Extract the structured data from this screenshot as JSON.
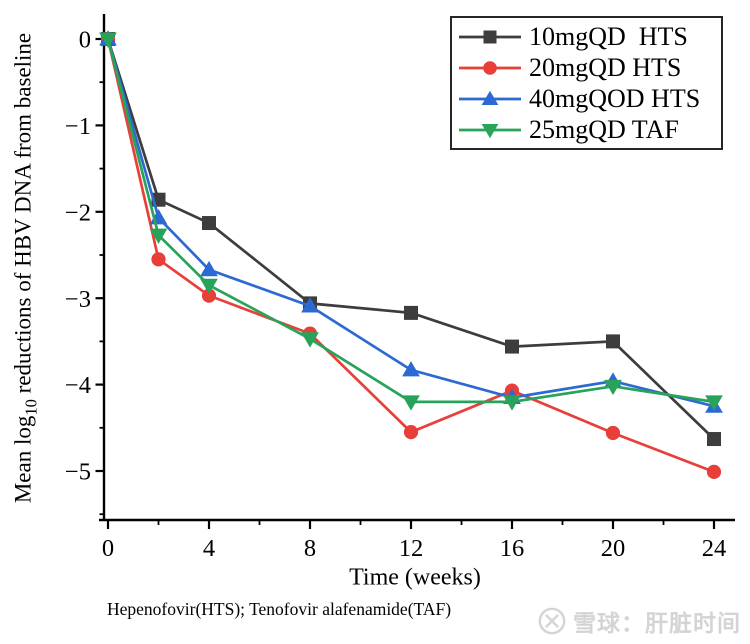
{
  "chart_data": {
    "type": "line",
    "title": "",
    "xlabel": "Time (weeks)",
    "ylabel": "Mean log10 reductions of HBV DNA from baseline",
    "ylabel_pre": "Mean log",
    "ylabel_sub": "10",
    "ylabel_post": " reductions of HBV DNA from baseline",
    "x": [
      0,
      2,
      4,
      8,
      12,
      16,
      20,
      24
    ],
    "series": [
      {
        "name": "10mgQD  HTS",
        "marker": "square",
        "color": "#3d3d3d",
        "values": [
          0,
          -1.86,
          -2.13,
          -3.06,
          -3.17,
          -3.56,
          -3.5,
          -4.63
        ]
      },
      {
        "name": "20mgQD HTS",
        "marker": "circle",
        "color": "#e83f38",
        "values": [
          0,
          -2.55,
          -2.97,
          -3.41,
          -4.55,
          -4.07,
          -4.56,
          -5.01
        ]
      },
      {
        "name": "40mgQOD HTS",
        "marker": "triangle-up",
        "color": "#2d69d2",
        "values": [
          0,
          -2.07,
          -2.67,
          -3.09,
          -3.83,
          -4.15,
          -3.96,
          -4.25
        ]
      },
      {
        "name": "25mgQD TAF",
        "marker": "triangle-down",
        "color": "#28a35a",
        "values": [
          0,
          -2.27,
          -2.85,
          -3.47,
          -4.2,
          -4.2,
          -4.02,
          -4.2
        ]
      }
    ],
    "x_major_ticks": [
      0,
      4,
      8,
      12,
      16,
      20,
      24
    ],
    "x_major_tick_labels": [
      "0",
      "4",
      "8",
      "12",
      "16",
      "20",
      "24"
    ],
    "x_minor_ticks": [
      2,
      6,
      10,
      14,
      18,
      22
    ],
    "y_major_ticks": [
      0,
      -1,
      -2,
      -3,
      -4,
      -5
    ],
    "y_major_tick_labels": [
      "0",
      "−1",
      "−2",
      "−3",
      "−4",
      "−5"
    ],
    "y_minor_ticks": [
      -0.5,
      -1.5,
      -2.5,
      -3.5,
      -4.5,
      -5.5
    ],
    "xlim": [
      -0.2,
      24.85
    ],
    "ylim": [
      -5.57,
      0.29
    ],
    "grid": false,
    "legend_position": "top-right"
  },
  "footnote": "Hepenofovir(HTS); Tenofovir alafenamide(TAF)",
  "watermark": {
    "text": "雪球：肝脏时间",
    "color": "#d4d4d4"
  }
}
